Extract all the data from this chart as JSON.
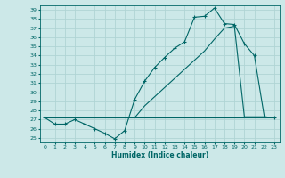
{
  "xlabel": "Humidex (Indice chaleur)",
  "xlim": [
    -0.5,
    23.5
  ],
  "ylim": [
    24.5,
    39.5
  ],
  "xticks": [
    0,
    1,
    2,
    3,
    4,
    5,
    6,
    7,
    8,
    9,
    10,
    11,
    12,
    13,
    14,
    15,
    16,
    17,
    18,
    19,
    20,
    21,
    22,
    23
  ],
  "yticks": [
    25,
    26,
    27,
    28,
    29,
    30,
    31,
    32,
    33,
    34,
    35,
    36,
    37,
    38,
    39
  ],
  "bg_color": "#cce8e8",
  "grid_color": "#b0d4d4",
  "line_color": "#006666",
  "curve1_x": [
    0,
    1,
    2,
    3,
    4,
    5,
    6,
    7,
    8,
    9,
    10,
    11,
    12,
    13,
    14,
    15,
    16,
    17,
    18,
    19,
    20,
    21,
    22,
    23
  ],
  "curve1_y": [
    27.2,
    26.5,
    26.5,
    27.0,
    26.5,
    26.0,
    25.5,
    24.9,
    25.8,
    29.2,
    31.2,
    32.7,
    33.8,
    34.8,
    35.5,
    38.2,
    38.3,
    39.2,
    37.5,
    37.4,
    35.3,
    34.0,
    27.3,
    27.2
  ],
  "curve2_x": [
    0,
    3,
    4,
    5,
    6,
    7,
    8,
    9,
    10,
    11,
    12,
    13,
    14,
    15,
    16,
    17,
    18,
    19,
    20,
    21,
    22,
    23
  ],
  "curve2_y": [
    27.2,
    27.2,
    27.2,
    27.2,
    27.2,
    27.2,
    27.2,
    27.2,
    28.5,
    29.5,
    30.5,
    31.5,
    32.5,
    33.5,
    34.5,
    35.8,
    37.0,
    37.2,
    27.3,
    27.3,
    27.3,
    27.2
  ],
  "curve3_x": [
    0,
    9,
    10,
    11,
    12,
    13,
    14,
    15,
    16,
    17,
    18,
    19,
    20,
    21,
    22,
    23
  ],
  "curve3_y": [
    27.2,
    27.2,
    27.2,
    27.2,
    27.2,
    27.2,
    27.2,
    27.2,
    27.2,
    27.2,
    27.2,
    27.2,
    27.2,
    27.2,
    27.2,
    27.2
  ]
}
